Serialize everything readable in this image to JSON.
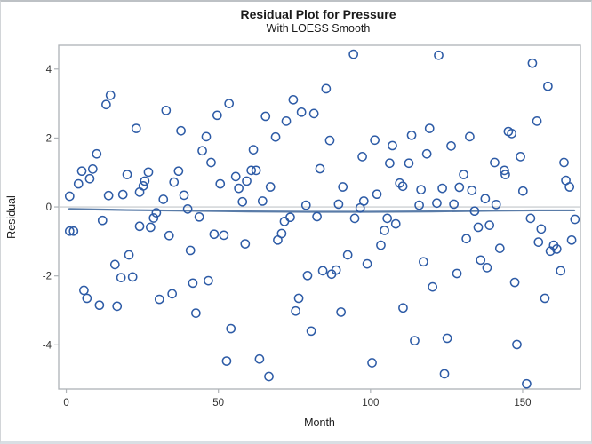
{
  "page": {
    "title": "Residual Plot for Pressure",
    "subtitle": "With LOESS Smooth"
  },
  "chart_data": {
    "type": "scatter",
    "title": "Residual Plot for Pressure",
    "subtitle": "With LOESS Smooth",
    "xlabel": "Month",
    "ylabel": "Residual",
    "xlim": [
      -2.5,
      169
    ],
    "ylim": [
      -5.28,
      4.69
    ],
    "xticks": [
      0,
      50,
      100,
      150
    ],
    "yticks": [
      -4,
      -2,
      0,
      2,
      4
    ],
    "grid": false,
    "legend": "none",
    "marker": {
      "shape": "open-circle",
      "radius": 4.6,
      "color": "#2d5ba6"
    },
    "frame_color": "#aeb2b6",
    "tick_label_color": "#333333",
    "reference_line": {
      "y": 0,
      "color": "#c2c6ca"
    },
    "loess_line": {
      "name": "LOESS Smooth",
      "color": "#5a7ca8",
      "width": 2.2,
      "points": [
        [
          1,
          -0.06
        ],
        [
          20,
          -0.09
        ],
        [
          40,
          -0.11
        ],
        [
          60,
          -0.13
        ],
        [
          80,
          -0.14
        ],
        [
          100,
          -0.14
        ],
        [
          120,
          -0.13
        ],
        [
          140,
          -0.11
        ],
        [
          155,
          -0.1
        ],
        [
          167,
          -0.1
        ]
      ]
    },
    "points": [
      [
        1.1,
        0.31
      ],
      [
        4.0,
        0.67
      ],
      [
        5.1,
        1.04
      ],
      [
        7.7,
        0.82
      ],
      [
        8.7,
        1.1
      ],
      [
        10.0,
        1.54
      ],
      [
        13.1,
        2.97
      ],
      [
        14.5,
        3.24
      ],
      [
        13.9,
        0.33
      ],
      [
        18.6,
        0.36
      ],
      [
        20.0,
        0.94
      ],
      [
        23.0,
        2.28
      ],
      [
        24.1,
        0.43
      ],
      [
        25.3,
        0.61
      ],
      [
        25.8,
        0.75
      ],
      [
        27.0,
        1.01
      ],
      [
        28.7,
        -0.32
      ],
      [
        29.6,
        -0.17
      ],
      [
        31.9,
        0.22
      ],
      [
        32.8,
        2.8
      ],
      [
        35.4,
        0.72
      ],
      [
        36.9,
        1.04
      ],
      [
        37.7,
        2.21
      ],
      [
        38.7,
        0.34
      ],
      [
        39.9,
        -0.06
      ],
      [
        43.7,
        -0.29
      ],
      [
        44.7,
        1.63
      ],
      [
        46.0,
        2.04
      ],
      [
        47.6,
        1.29
      ],
      [
        49.6,
        2.66
      ],
      [
        50.6,
        0.67
      ],
      [
        53.5,
        3.0
      ],
      [
        94.4,
        4.43
      ],
      [
        85.4,
        3.43
      ],
      [
        74.6,
        3.11
      ],
      [
        65.5,
        2.63
      ],
      [
        77.3,
        2.75
      ],
      [
        81.4,
        2.71
      ],
      [
        72.3,
        2.49
      ],
      [
        68.8,
        2.03
      ],
      [
        61.5,
        1.66
      ],
      [
        86.6,
        1.93
      ],
      [
        101.4,
        1.94
      ],
      [
        107.2,
        1.78
      ],
      [
        97.3,
        1.46
      ],
      [
        106.3,
        1.27
      ],
      [
        83.4,
        1.11
      ],
      [
        55.7,
        0.88
      ],
      [
        60.8,
        1.06
      ],
      [
        62.4,
        1.06
      ],
      [
        59.3,
        0.75
      ],
      [
        56.7,
        0.54
      ],
      [
        67.1,
        0.58
      ],
      [
        57.9,
        0.15
      ],
      [
        64.5,
        0.17
      ],
      [
        90.9,
        0.58
      ],
      [
        102.1,
        0.37
      ],
      [
        109.6,
        0.69
      ],
      [
        110.6,
        0.6
      ],
      [
        78.8,
        0.05
      ],
      [
        89.5,
        0.08
      ],
      [
        97.8,
        0.17
      ],
      [
        96.6,
        -0.03
      ],
      [
        73.6,
        -0.3
      ],
      [
        82.4,
        -0.28
      ],
      [
        94.8,
        -0.33
      ],
      [
        122.4,
        4.4
      ],
      [
        153.2,
        4.17
      ],
      [
        158.3,
        3.5
      ],
      [
        154.7,
        2.49
      ],
      [
        119.4,
        2.28
      ],
      [
        113.5,
        2.08
      ],
      [
        145.3,
        2.19
      ],
      [
        146.4,
        2.13
      ],
      [
        132.6,
        2.04
      ],
      [
        126.5,
        1.77
      ],
      [
        118.5,
        1.54
      ],
      [
        149.3,
        1.46
      ],
      [
        112.6,
        1.27
      ],
      [
        140.8,
        1.29
      ],
      [
        163.6,
        1.29
      ],
      [
        144.0,
        1.06
      ],
      [
        144.3,
        0.94
      ],
      [
        130.6,
        0.94
      ],
      [
        116.6,
        0.5
      ],
      [
        123.6,
        0.54
      ],
      [
        129.2,
        0.57
      ],
      [
        133.3,
        0.48
      ],
      [
        150.1,
        0.46
      ],
      [
        164.2,
        0.77
      ],
      [
        165.4,
        0.58
      ],
      [
        137.7,
        0.24
      ],
      [
        141.3,
        0.07
      ],
      [
        116.0,
        0.05
      ],
      [
        121.8,
        0.11
      ],
      [
        127.4,
        0.08
      ],
      [
        134.2,
        -0.12
      ],
      [
        152.6,
        -0.33
      ],
      [
        167.2,
        -0.36
      ],
      [
        1.1,
        -0.7
      ],
      [
        2.4,
        -0.7
      ],
      [
        11.9,
        -0.39
      ],
      [
        24.1,
        -0.56
      ],
      [
        27.7,
        -0.59
      ],
      [
        33.8,
        -0.83
      ],
      [
        48.6,
        -0.79
      ],
      [
        51.8,
        -0.82
      ],
      [
        40.8,
        -1.26
      ],
      [
        20.6,
        -1.39
      ],
      [
        16.0,
        -1.67
      ],
      [
        18.0,
        -2.05
      ],
      [
        21.8,
        -2.03
      ],
      [
        5.8,
        -2.42
      ],
      [
        6.8,
        -2.65
      ],
      [
        10.9,
        -2.85
      ],
      [
        16.7,
        -2.88
      ],
      [
        30.6,
        -2.68
      ],
      [
        34.8,
        -2.52
      ],
      [
        41.6,
        -2.21
      ],
      [
        46.7,
        -2.14
      ],
      [
        42.6,
        -3.08
      ],
      [
        54.1,
        -3.53
      ],
      [
        52.7,
        -4.47
      ],
      [
        71.7,
        -0.42
      ],
      [
        105.5,
        -0.33
      ],
      [
        108.3,
        -0.49
      ],
      [
        104.6,
        -0.68
      ],
      [
        69.5,
        -0.96
      ],
      [
        70.8,
        -0.77
      ],
      [
        58.8,
        -1.07
      ],
      [
        103.4,
        -1.11
      ],
      [
        92.5,
        -1.39
      ],
      [
        98.9,
        -1.65
      ],
      [
        84.3,
        -1.85
      ],
      [
        87.2,
        -1.95
      ],
      [
        88.7,
        -1.83
      ],
      [
        79.3,
        -1.99
      ],
      [
        76.4,
        -2.65
      ],
      [
        75.4,
        -3.02
      ],
      [
        90.3,
        -3.05
      ],
      [
        80.5,
        -3.6
      ],
      [
        63.5,
        -4.41
      ],
      [
        100.5,
        -4.52
      ],
      [
        66.6,
        -4.92
      ],
      [
        110.7,
        -2.93
      ],
      [
        135.4,
        -0.59
      ],
      [
        139.1,
        -0.53
      ],
      [
        156.1,
        -0.64
      ],
      [
        131.5,
        -0.92
      ],
      [
        155.2,
        -1.02
      ],
      [
        166.1,
        -0.96
      ],
      [
        142.5,
        -1.2
      ],
      [
        159.1,
        -1.28
      ],
      [
        160.2,
        -1.11
      ],
      [
        161.2,
        -1.22
      ],
      [
        117.4,
        -1.59
      ],
      [
        136.2,
        -1.54
      ],
      [
        138.3,
        -1.76
      ],
      [
        128.4,
        -1.93
      ],
      [
        120.4,
        -2.32
      ],
      [
        147.4,
        -2.19
      ],
      [
        162.5,
        -1.85
      ],
      [
        157.3,
        -2.65
      ],
      [
        114.5,
        -3.88
      ],
      [
        125.2,
        -3.81
      ],
      [
        148.1,
        -3.99
      ],
      [
        124.3,
        -4.84
      ],
      [
        151.3,
        -5.13
      ]
    ]
  }
}
